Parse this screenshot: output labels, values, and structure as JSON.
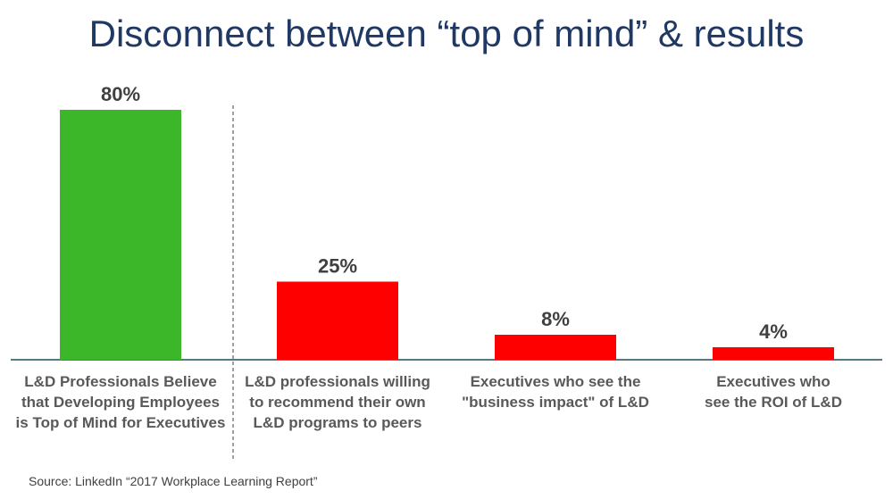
{
  "title": "Disconnect between “top of mind” & results",
  "source": "Source: LinkedIn “2017 Workplace Learning Report”",
  "colors": {
    "green": "#3cb72a",
    "red": "#ff0000",
    "axis": "#1f4e5a",
    "label": "#595959",
    "value": "#404040"
  },
  "chart_data": {
    "type": "bar",
    "categories": [
      "L&D Professionals Believe\nthat Developing Employees\nis Top of Mind for Executives",
      "L&D professionals willing\nto recommend their own\nL&D programs to peers",
      "Executives who see the\n\"business impact\" of L&D",
      "Executives who\nsee the ROI of L&D"
    ],
    "values": [
      80,
      25,
      8,
      4
    ],
    "value_labels": [
      "80%",
      "25%",
      "8%",
      "4%"
    ],
    "bar_colors": [
      "#3cb72a",
      "#ff0000",
      "#ff0000",
      "#ff0000"
    ],
    "ylim": [
      0,
      100
    ],
    "grid": false,
    "divider_after_category": 0
  }
}
